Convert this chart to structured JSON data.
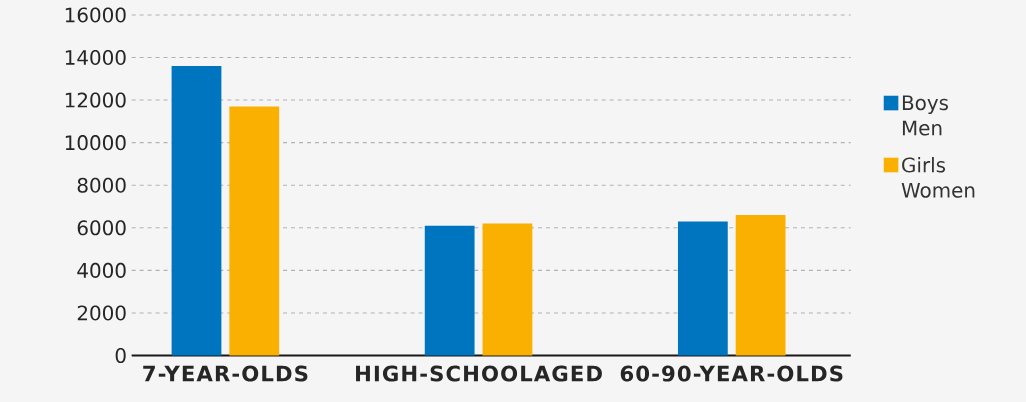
{
  "chart_data": {
    "type": "bar",
    "categories": [
      "7-YEAR-OLDS",
      "HIGH-SCHOOLAGED",
      "60-90-YEAR-OLDS"
    ],
    "series": [
      {
        "name": "Boys Men",
        "color": "#0075bf",
        "values": [
          13600,
          6100,
          6300
        ]
      },
      {
        "name": "Girls Women",
        "color": "#f9b000",
        "values": [
          11700,
          6200,
          6600
        ]
      }
    ],
    "ylim": [
      0,
      16000
    ],
    "yticks": [
      0,
      2000,
      4000,
      6000,
      8000,
      10000,
      12000,
      14000,
      16000
    ],
    "grid": "y",
    "legend": "right"
  }
}
